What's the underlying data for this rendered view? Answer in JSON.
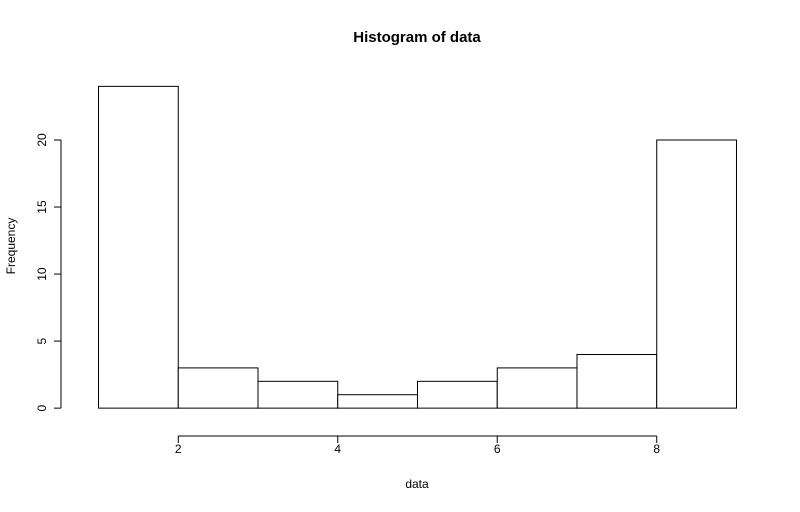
{
  "chart_data": {
    "type": "histogram",
    "title": "Histogram of data",
    "x_label": "data",
    "y_label": "Frequency",
    "bins": [
      1,
      2,
      3,
      4,
      5,
      6,
      7,
      8,
      9
    ],
    "counts": [
      24,
      3,
      2,
      1,
      2,
      3,
      4,
      20
    ],
    "color": "#ffffff",
    "edge_color": "#000000",
    "xlim": [
      0.68,
      9.32
    ],
    "ylim": [
      -0.96,
      24.96
    ],
    "xticks": [
      2,
      4,
      6,
      8
    ],
    "yticks": [
      0,
      5,
      10,
      15,
      20
    ],
    "grid": false
  }
}
